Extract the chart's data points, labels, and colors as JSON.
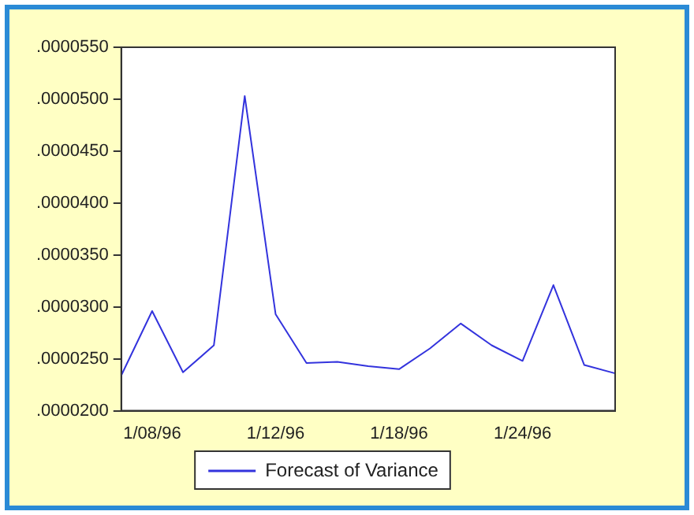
{
  "chart_data": {
    "type": "line",
    "categories": [
      null,
      "1/08/96",
      null,
      null,
      null,
      "1/12/96",
      null,
      null,
      null,
      "1/18/96",
      null,
      null,
      null,
      "1/24/96",
      null,
      null,
      null
    ],
    "series": [
      {
        "name": "Forecast of Variance",
        "color": "#3333dd",
        "values": [
          2.34e-05,
          2.96e-05,
          2.37e-05,
          2.63e-05,
          5.03e-05,
          2.93e-05,
          2.46e-05,
          2.47e-05,
          2.43e-05,
          2.4e-05,
          2.6e-05,
          2.84e-05,
          2.63e-05,
          2.48e-05,
          3.21e-05,
          2.44e-05,
          2.36e-05
        ]
      }
    ],
    "ylim": [
      2e-05,
      5.5e-05
    ],
    "yticks": [
      {
        "value": 2e-05,
        "label": ".0000200"
      },
      {
        "value": 2.5e-05,
        "label": ".0000250"
      },
      {
        "value": 3e-05,
        "label": ".0000300"
      },
      {
        "value": 3.5e-05,
        "label": ".0000350"
      },
      {
        "value": 4e-05,
        "label": ".0000400"
      },
      {
        "value": 4.5e-05,
        "label": ".0000450"
      },
      {
        "value": 5e-05,
        "label": ".0000500"
      },
      {
        "value": 5.5e-05,
        "label": ".0000550"
      }
    ],
    "grid": false,
    "legend": "bottom",
    "marker": "none",
    "line_style": "solid"
  }
}
